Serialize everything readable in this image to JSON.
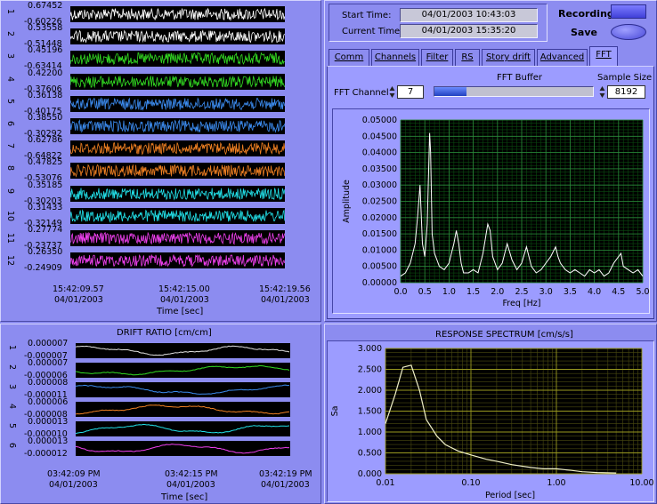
{
  "channels_panel": {
    "rows": [
      {
        "num": "1",
        "max": "0.67452",
        "min": "-0.60226",
        "color": "#ffffff"
      },
      {
        "num": "2",
        "max": "0.53558",
        "min": "-0.51448",
        "color": "#ffffff"
      },
      {
        "num": "3",
        "max": "0.45196",
        "min": "-0.63414",
        "color": "#33dd22"
      },
      {
        "num": "4",
        "max": "0.42200",
        "min": "-0.37606",
        "color": "#33dd22"
      },
      {
        "num": "5",
        "max": "0.36138",
        "min": "-0.40175",
        "color": "#3c8cf0"
      },
      {
        "num": "6",
        "max": "0.38550",
        "min": "-0.30292",
        "color": "#3c8cf0"
      },
      {
        "num": "7",
        "max": "0.62786",
        "min": "-0.64822",
        "color": "#f08022"
      },
      {
        "num": "8",
        "max": "0.47825",
        "min": "-0.53076",
        "color": "#f08022"
      },
      {
        "num": "9",
        "max": "0.35185",
        "min": "-0.30203",
        "color": "#22e0e8"
      },
      {
        "num": "10",
        "max": "0.31433",
        "min": "-0.32149",
        "color": "#22e0e8"
      },
      {
        "num": "11",
        "max": "0.27774",
        "min": "-0.23737",
        "color": "#f040f0"
      },
      {
        "num": "12",
        "max": "0.26350",
        "min": "-0.24909",
        "color": "#f040f0"
      }
    ],
    "x_ticks": [
      {
        "time": "15:42:09.57",
        "date": "04/01/2003"
      },
      {
        "time": "15:42:15.00",
        "date": "04/01/2003"
      },
      {
        "time": "15:42:19.56",
        "date": "04/01/2003"
      }
    ],
    "xlabel": "Time [sec]"
  },
  "drift_panel": {
    "title": "DRIFT RATIO [cm/cm]",
    "rows": [
      {
        "num": "1",
        "max": "0.000007",
        "min": "-0.000007",
        "color": "#e0e0e0"
      },
      {
        "num": "2",
        "max": "0.000007",
        "min": "-0.000006",
        "color": "#33dd22"
      },
      {
        "num": "3",
        "max": "0.000008",
        "min": "-0.000011",
        "color": "#3c8cf0"
      },
      {
        "num": "4",
        "max": "0.000006",
        "min": "-0.000008",
        "color": "#f08022"
      },
      {
        "num": "5",
        "max": "0.000013",
        "min": "-0.000010",
        "color": "#22e0e8"
      },
      {
        "num": "6",
        "max": "0.000013",
        "min": "-0.000012",
        "color": "#f040f0"
      }
    ],
    "x_ticks": [
      {
        "time": "03:42:09 PM",
        "date": "04/01/2003"
      },
      {
        "time": "03:42:15 PM",
        "date": "04/01/2003"
      },
      {
        "time": "03:42:19 PM",
        "date": "04/01/2003"
      }
    ],
    "xlabel": "Time [sec]"
  },
  "header": {
    "start_label": "Start Time:",
    "start_value": "04/01/2003  10:43:03",
    "current_label": "Current Time:",
    "current_value": "04/01/2003  15:35:20",
    "recording_label": "Recording",
    "save_label": "Save"
  },
  "tabs": [
    "Comm",
    "Channels",
    "Filter",
    "RS",
    "Story drift",
    "Advanced",
    "FFT"
  ],
  "active_tab": "FFT",
  "fft": {
    "buffer_label": "FFT Buffer",
    "buffer_fill": 0.2,
    "channel_label": "FFT Channel",
    "channel_value": "7",
    "sample_size_label": "Sample Size",
    "sample_size_value": "8192"
  },
  "response_panel": {
    "title": "RESPONSE SPECTRUM [cm/s/s]"
  },
  "chart_data": [
    {
      "type": "line",
      "name_ref": "fft",
      "xlabel": "Freq [Hz]",
      "ylabel": "Amplitude",
      "xlim": [
        0,
        5.0
      ],
      "ylim": [
        0,
        0.05
      ],
      "x_ticks": [
        "0.0",
        "0.5",
        "1.0",
        "1.5",
        "2.0",
        "2.5",
        "3.0",
        "3.5",
        "4.0",
        "4.5",
        "5.0"
      ],
      "y_ticks": [
        "0.00000",
        "0.00500",
        "0.01000",
        "0.01500",
        "0.02000",
        "0.02500",
        "0.03000",
        "0.03500",
        "0.04000",
        "0.04500",
        "0.05000"
      ],
      "grid": true,
      "color": "#ffffff",
      "x": [
        0.0,
        0.1,
        0.2,
        0.3,
        0.35,
        0.4,
        0.45,
        0.5,
        0.55,
        0.6,
        0.62,
        0.65,
        0.7,
        0.8,
        0.9,
        1.0,
        1.1,
        1.15,
        1.2,
        1.25,
        1.3,
        1.4,
        1.5,
        1.6,
        1.7,
        1.8,
        1.85,
        1.9,
        2.0,
        2.1,
        2.2,
        2.3,
        2.4,
        2.5,
        2.6,
        2.7,
        2.8,
        2.9,
        3.0,
        3.1,
        3.2,
        3.25,
        3.3,
        3.4,
        3.5,
        3.6,
        3.7,
        3.8,
        3.9,
        4.0,
        4.1,
        4.2,
        4.3,
        4.4,
        4.5,
        4.55,
        4.6,
        4.7,
        4.8,
        4.9,
        5.0
      ],
      "y": [
        0.002,
        0.003,
        0.006,
        0.012,
        0.02,
        0.03,
        0.012,
        0.008,
        0.018,
        0.046,
        0.04,
        0.015,
        0.009,
        0.005,
        0.004,
        0.006,
        0.012,
        0.016,
        0.012,
        0.006,
        0.003,
        0.003,
        0.004,
        0.003,
        0.009,
        0.018,
        0.016,
        0.008,
        0.004,
        0.006,
        0.012,
        0.007,
        0.004,
        0.006,
        0.011,
        0.005,
        0.003,
        0.004,
        0.006,
        0.008,
        0.011,
        0.008,
        0.006,
        0.004,
        0.003,
        0.004,
        0.003,
        0.002,
        0.004,
        0.003,
        0.004,
        0.002,
        0.003,
        0.006,
        0.008,
        0.009,
        0.005,
        0.004,
        0.003,
        0.004,
        0.002
      ]
    },
    {
      "type": "line",
      "name_ref": "response",
      "xlabel": "Period [sec]",
      "ylabel": "Sa",
      "xscale": "log",
      "xlim": [
        0.01,
        10.0
      ],
      "ylim": [
        0,
        3.0
      ],
      "x_ticks": [
        "0.01",
        "0.10",
        "1.00",
        "10.00"
      ],
      "y_ticks": [
        "0.000",
        "0.500",
        "1.000",
        "1.500",
        "2.000",
        "2.500",
        "3.000"
      ],
      "grid": true,
      "color": "#f0f0c8",
      "x": [
        0.01,
        0.013,
        0.016,
        0.02,
        0.025,
        0.03,
        0.04,
        0.05,
        0.07,
        0.1,
        0.15,
        0.2,
        0.3,
        0.5,
        0.7,
        1.0,
        1.5,
        2.0,
        3.0,
        5.0
      ],
      "y": [
        1.2,
        1.9,
        2.55,
        2.6,
        2.0,
        1.3,
        0.9,
        0.7,
        0.55,
        0.45,
        0.35,
        0.3,
        0.22,
        0.15,
        0.12,
        0.12,
        0.08,
        0.05,
        0.03,
        0.02
      ]
    }
  ]
}
